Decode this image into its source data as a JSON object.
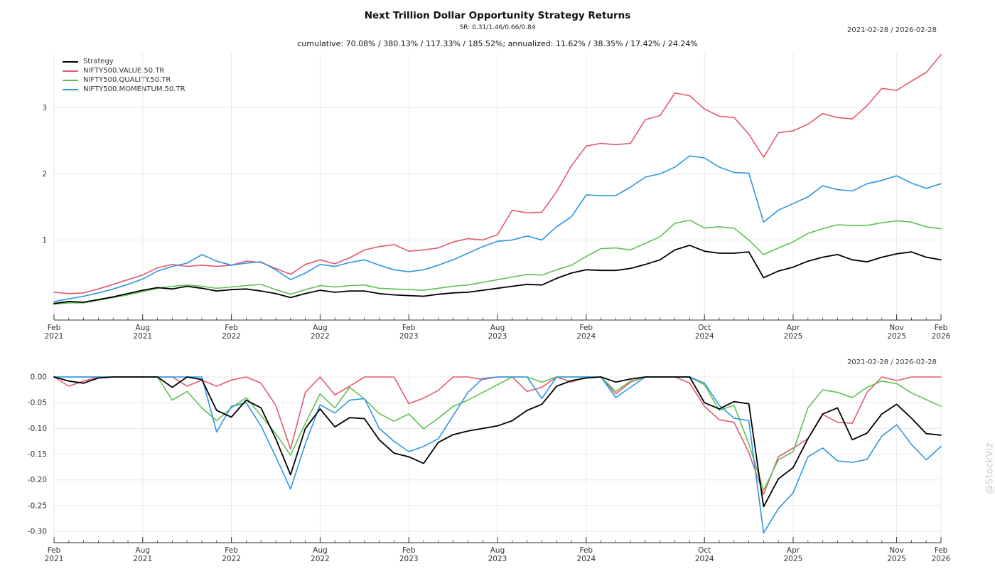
{
  "header": {
    "title": "Next Trillion Dollar Opportunity Strategy Returns",
    "subtitle": "SR: 0.31/1.46/0.66/0.84",
    "stats_line": "cumulative: 70.08% / 380.13% / 117.33% / 185.52%; annualized: 11.62% / 38.35% / 17.42% / 24.24%"
  },
  "watermark": "@StockViz",
  "colors": {
    "strategy": "#000000",
    "value": "#e25a6e",
    "quality": "#5ec253",
    "momentum": "#2d97e3",
    "grid": "#e8e8e8",
    "spine": "#dddddd",
    "axis": "#333333"
  },
  "chart_data": [
    {
      "type": "line",
      "panel": "cumulative-returns",
      "date_range": "2021-02-28 / 2026-02-28",
      "x_unit": "month",
      "grid": true,
      "legend_position": "top-left",
      "ylim": [
        -0.21,
        3.82
      ],
      "y_ticks": [
        {
          "value": 1,
          "label": "1"
        },
        {
          "value": 2,
          "label": "2"
        },
        {
          "value": 3,
          "label": "3"
        }
      ],
      "x_ticks": [
        {
          "index": 0,
          "month": "Feb",
          "year": "2021"
        },
        {
          "index": 6,
          "month": "Aug",
          "year": "2021"
        },
        {
          "index": 12,
          "month": "Feb",
          "year": "2022"
        },
        {
          "index": 18,
          "month": "Aug",
          "year": "2022"
        },
        {
          "index": 24,
          "month": "Feb",
          "year": "2023"
        },
        {
          "index": 30,
          "month": "Aug",
          "year": "2023"
        },
        {
          "index": 36,
          "month": "Feb",
          "year": "2024"
        },
        {
          "index": 44,
          "month": "Oct",
          "year": "2024"
        },
        {
          "index": 50,
          "month": "Apr",
          "year": "2025"
        },
        {
          "index": 57,
          "month": "Nov",
          "year": "2025"
        },
        {
          "index": 60,
          "month": "Feb",
          "year": "2026"
        }
      ],
      "dates": [
        "2021-02",
        "2021-03",
        "2021-04",
        "2021-05",
        "2021-06",
        "2021-07",
        "2021-08",
        "2021-09",
        "2021-10",
        "2021-11",
        "2021-12",
        "2022-01",
        "2022-02",
        "2022-03",
        "2022-04",
        "2022-05",
        "2022-06",
        "2022-07",
        "2022-08",
        "2022-09",
        "2022-10",
        "2022-11",
        "2022-12",
        "2023-01",
        "2023-02",
        "2023-03",
        "2023-04",
        "2023-05",
        "2023-06",
        "2023-07",
        "2023-08",
        "2023-09",
        "2023-10",
        "2023-11",
        "2023-12",
        "2024-01",
        "2024-02",
        "2024-03",
        "2024-04",
        "2024-05",
        "2024-06",
        "2024-07",
        "2024-08",
        "2024-09",
        "2024-10",
        "2024-11",
        "2024-12",
        "2025-01",
        "2025-02",
        "2025-03",
        "2025-04",
        "2025-05",
        "2025-06",
        "2025-07",
        "2025-08",
        "2025-09",
        "2025-10",
        "2025-11",
        "2025-12",
        "2026-01",
        "2026-02"
      ],
      "series": [
        {
          "name": "Strategy",
          "color": "#000000",
          "values": [
            0.04,
            0.07,
            0.06,
            0.1,
            0.14,
            0.19,
            0.24,
            0.28,
            0.26,
            0.3,
            0.27,
            0.23,
            0.25,
            0.26,
            0.23,
            0.19,
            0.13,
            0.19,
            0.24,
            0.21,
            0.23,
            0.23,
            0.19,
            0.17,
            0.16,
            0.15,
            0.18,
            0.2,
            0.21,
            0.24,
            0.27,
            0.3,
            0.33,
            0.32,
            0.42,
            0.5,
            0.55,
            0.54,
            0.54,
            0.57,
            0.63,
            0.7,
            0.85,
            0.92,
            0.83,
            0.8,
            0.8,
            0.82,
            0.43,
            0.53,
            0.59,
            0.68,
            0.74,
            0.78,
            0.7,
            0.67,
            0.74,
            0.79,
            0.82,
            0.74,
            0.7
          ]
        },
        {
          "name": "NIFTY500.VALUE.50.TR",
          "color": "#e25a6e",
          "values": [
            0.21,
            0.19,
            0.2,
            0.26,
            0.33,
            0.4,
            0.47,
            0.58,
            0.63,
            0.6,
            0.62,
            0.6,
            0.62,
            0.68,
            0.66,
            0.57,
            0.48,
            0.63,
            0.7,
            0.64,
            0.73,
            0.85,
            0.9,
            0.93,
            0.83,
            0.85,
            0.88,
            0.97,
            1.02,
            1.0,
            1.08,
            1.45,
            1.41,
            1.42,
            1.73,
            2.12,
            2.42,
            2.46,
            2.44,
            2.46,
            2.82,
            2.88,
            3.22,
            3.18,
            2.98,
            2.87,
            2.85,
            2.6,
            2.25,
            2.62,
            2.65,
            2.75,
            2.91,
            2.85,
            2.83,
            3.03,
            3.29,
            3.26,
            3.4,
            3.53,
            3.8
          ]
        },
        {
          "name": "NIFTY500.QUALITY.50.TR",
          "color": "#5ec253",
          "values": [
            0.03,
            0.05,
            0.05,
            0.09,
            0.13,
            0.17,
            0.22,
            0.27,
            0.3,
            0.32,
            0.3,
            0.27,
            0.29,
            0.31,
            0.33,
            0.25,
            0.18,
            0.25,
            0.31,
            0.29,
            0.31,
            0.32,
            0.27,
            0.26,
            0.25,
            0.24,
            0.27,
            0.3,
            0.32,
            0.36,
            0.4,
            0.44,
            0.48,
            0.47,
            0.55,
            0.62,
            0.75,
            0.87,
            0.88,
            0.85,
            0.95,
            1.05,
            1.25,
            1.3,
            1.18,
            1.2,
            1.18,
            1.0,
            0.78,
            0.88,
            0.97,
            1.1,
            1.17,
            1.23,
            1.22,
            1.22,
            1.26,
            1.29,
            1.27,
            1.2,
            1.17
          ]
        },
        {
          "name": "NIFTY500.MOMENTUM.50.TR",
          "color": "#2d97e3",
          "values": [
            0.07,
            0.11,
            0.15,
            0.2,
            0.26,
            0.33,
            0.41,
            0.53,
            0.6,
            0.65,
            0.78,
            0.68,
            0.62,
            0.65,
            0.67,
            0.55,
            0.4,
            0.5,
            0.63,
            0.6,
            0.66,
            0.7,
            0.62,
            0.55,
            0.52,
            0.55,
            0.62,
            0.7,
            0.8,
            0.9,
            0.98,
            1.0,
            1.06,
            1.0,
            1.2,
            1.35,
            1.68,
            1.67,
            1.67,
            1.8,
            1.95,
            2.0,
            2.1,
            2.27,
            2.24,
            2.1,
            2.02,
            2.01,
            1.27,
            1.45,
            1.55,
            1.65,
            1.82,
            1.76,
            1.74,
            1.85,
            1.9,
            1.97,
            1.86,
            1.78,
            1.85
          ]
        }
      ]
    },
    {
      "type": "line",
      "panel": "drawdown",
      "date_range": "2021-02-28 / 2026-02-28",
      "x_unit": "month",
      "grid": true,
      "legend_position": "none",
      "ylim": [
        -0.322,
        0.0166
      ],
      "y_ticks": [
        {
          "value": 0,
          "label": "0.00"
        },
        {
          "value": -0.05,
          "label": "-0.05"
        },
        {
          "value": -0.1,
          "label": "-0.10"
        },
        {
          "value": -0.15,
          "label": "-0.15"
        },
        {
          "value": -0.2,
          "label": "-0.20"
        },
        {
          "value": -0.25,
          "label": "-0.25"
        },
        {
          "value": -0.3,
          "label": "-0.30"
        }
      ],
      "x_ticks": [
        {
          "index": 0,
          "month": "Feb",
          "year": "2021"
        },
        {
          "index": 6,
          "month": "Aug",
          "year": "2021"
        },
        {
          "index": 12,
          "month": "Feb",
          "year": "2022"
        },
        {
          "index": 18,
          "month": "Aug",
          "year": "2022"
        },
        {
          "index": 24,
          "month": "Feb",
          "year": "2023"
        },
        {
          "index": 30,
          "month": "Aug",
          "year": "2023"
        },
        {
          "index": 36,
          "month": "Feb",
          "year": "2024"
        },
        {
          "index": 44,
          "month": "Oct",
          "year": "2024"
        },
        {
          "index": 50,
          "month": "Apr",
          "year": "2025"
        },
        {
          "index": 57,
          "month": "Nov",
          "year": "2025"
        },
        {
          "index": 60,
          "month": "Feb",
          "year": "2026"
        }
      ],
      "dates": [
        "2021-02",
        "2021-03",
        "2021-04",
        "2021-05",
        "2021-06",
        "2021-07",
        "2021-08",
        "2021-09",
        "2021-10",
        "2021-11",
        "2021-12",
        "2022-01",
        "2022-02",
        "2022-03",
        "2022-04",
        "2022-05",
        "2022-06",
        "2022-07",
        "2022-08",
        "2022-09",
        "2022-10",
        "2022-11",
        "2022-12",
        "2023-01",
        "2023-02",
        "2023-03",
        "2023-04",
        "2023-05",
        "2023-06",
        "2023-07",
        "2023-08",
        "2023-09",
        "2023-10",
        "2023-11",
        "2023-12",
        "2024-01",
        "2024-02",
        "2024-03",
        "2024-04",
        "2024-05",
        "2024-06",
        "2024-07",
        "2024-08",
        "2024-09",
        "2024-10",
        "2024-11",
        "2024-12",
        "2025-01",
        "2025-02",
        "2025-03",
        "2025-04",
        "2025-05",
        "2025-06",
        "2025-07",
        "2025-08",
        "2025-09",
        "2025-10",
        "2025-11",
        "2025-12",
        "2026-01",
        "2026-02"
      ],
      "series": [
        {
          "name": "Strategy",
          "color": "#000000",
          "values": [
            0.0,
            -0.008,
            -0.012,
            -0.002,
            0.0,
            0.0,
            0.0,
            0.0,
            -0.02,
            0.0,
            -0.005,
            -0.065,
            -0.078,
            -0.045,
            -0.06,
            -0.12,
            -0.19,
            -0.1,
            -0.062,
            -0.097,
            -0.079,
            -0.081,
            -0.122,
            -0.148,
            -0.155,
            -0.168,
            -0.127,
            -0.112,
            -0.105,
            -0.1,
            -0.095,
            -0.085,
            -0.065,
            -0.053,
            -0.018,
            -0.007,
            -0.002,
            0.0,
            -0.01,
            -0.004,
            0.0,
            0.0,
            0.0,
            0.0,
            -0.05,
            -0.062,
            -0.048,
            -0.052,
            -0.252,
            -0.198,
            -0.176,
            -0.12,
            -0.072,
            -0.06,
            -0.122,
            -0.109,
            -0.072,
            -0.053,
            -0.08,
            -0.11,
            -0.113
          ]
        },
        {
          "name": "NIFTY500.VALUE.50.TR",
          "color": "#e25a6e",
          "values": [
            0.0,
            -0.018,
            -0.008,
            0.0,
            0.0,
            0.0,
            0.0,
            0.0,
            0.0,
            -0.018,
            -0.006,
            -0.018,
            -0.006,
            0.0,
            -0.012,
            -0.055,
            -0.14,
            -0.03,
            0.0,
            -0.035,
            -0.018,
            0.0,
            0.0,
            0.0,
            -0.052,
            -0.041,
            -0.026,
            0.0,
            0.0,
            -0.005,
            0.0,
            0.0,
            -0.028,
            -0.02,
            0.0,
            -0.01,
            0.0,
            0.0,
            -0.033,
            -0.01,
            0.0,
            0.0,
            0.0,
            -0.012,
            -0.057,
            -0.083,
            -0.088,
            -0.147,
            -0.228,
            -0.155,
            -0.138,
            -0.12,
            -0.073,
            -0.088,
            -0.09,
            -0.03,
            0.0,
            -0.007,
            0.0,
            0.0,
            0.0
          ]
        },
        {
          "name": "NIFTY500.QUALITY.50.TR",
          "color": "#5ec253",
          "values": [
            0.0,
            0.0,
            0.0,
            0.0,
            0.0,
            0.0,
            0.0,
            0.0,
            -0.045,
            -0.028,
            -0.06,
            -0.085,
            -0.06,
            -0.04,
            -0.075,
            -0.11,
            -0.152,
            -0.09,
            -0.033,
            -0.06,
            -0.02,
            -0.043,
            -0.071,
            -0.086,
            -0.072,
            -0.101,
            -0.08,
            -0.057,
            -0.045,
            -0.03,
            -0.015,
            0.0,
            0.0,
            -0.01,
            0.0,
            0.0,
            0.0,
            0.0,
            -0.028,
            -0.008,
            0.0,
            0.0,
            0.0,
            0.0,
            -0.015,
            -0.065,
            -0.055,
            -0.13,
            -0.22,
            -0.161,
            -0.145,
            -0.06,
            -0.025,
            -0.03,
            -0.04,
            -0.02,
            -0.008,
            -0.013,
            -0.031,
            -0.044,
            -0.057
          ]
        },
        {
          "name": "NIFTY500.MOMENTUM.50.TR",
          "color": "#2d97e3",
          "values": [
            0.0,
            0.0,
            0.0,
            0.0,
            0.0,
            0.0,
            0.0,
            0.0,
            0.0,
            0.0,
            0.0,
            -0.107,
            -0.057,
            -0.05,
            -0.095,
            -0.155,
            -0.218,
            -0.13,
            -0.054,
            -0.07,
            -0.045,
            -0.042,
            -0.1,
            -0.125,
            -0.145,
            -0.135,
            -0.12,
            -0.075,
            -0.03,
            -0.003,
            0.0,
            0.0,
            0.0,
            -0.042,
            0.0,
            0.0,
            0.0,
            0.0,
            -0.04,
            -0.02,
            0.0,
            0.0,
            0.0,
            0.0,
            -0.012,
            -0.055,
            -0.08,
            -0.085,
            -0.303,
            -0.256,
            -0.225,
            -0.155,
            -0.138,
            -0.163,
            -0.166,
            -0.16,
            -0.115,
            -0.093,
            -0.131,
            -0.161,
            -0.135
          ]
        }
      ]
    }
  ]
}
